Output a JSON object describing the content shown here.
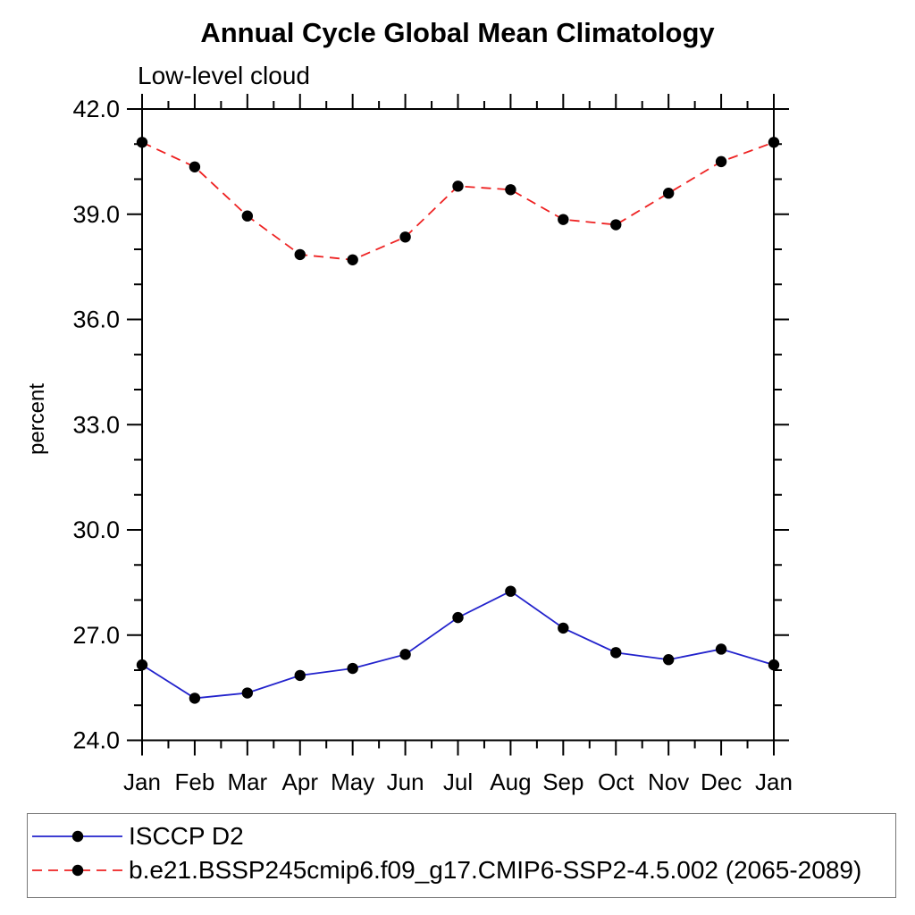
{
  "chart_data": {
    "type": "line",
    "title": "Annual Cycle Global Mean Climatology",
    "subtitle": "Low-level cloud",
    "ylabel": "percent",
    "xlabel": "",
    "categories": [
      "Jan",
      "Feb",
      "Mar",
      "Apr",
      "May",
      "Jun",
      "Jul",
      "Aug",
      "Sep",
      "Oct",
      "Nov",
      "Dec",
      "Jan"
    ],
    "ylim": [
      24.0,
      42.0
    ],
    "y_major_tick_step": 3.0,
    "y_minor_tick_step": 1.0,
    "y_major_tick_labels": [
      "24.0",
      "27.0",
      "30.0",
      "33.0",
      "36.0",
      "39.0",
      "42.0"
    ],
    "grid": false,
    "legend_position": "bottom-left-box",
    "axis_color": "#000000",
    "marker_color": "#000000",
    "series": [
      {
        "name": "ISCCP D2",
        "color": "#2222cc",
        "line_style": "solid",
        "marker": "filled-circle",
        "values": [
          26.15,
          25.2,
          25.35,
          25.85,
          26.05,
          26.45,
          27.5,
          28.25,
          27.2,
          26.5,
          26.3,
          26.6,
          26.15
        ]
      },
      {
        "name": "b.e21.BSSP245cmip6.f09_g17.CMIP6-SSP2-4.5.002 (2065-2089)",
        "color": "#ee2222",
        "line_style": "dashed",
        "marker": "filled-circle",
        "values": [
          41.05,
          40.35,
          38.95,
          37.85,
          37.7,
          38.35,
          39.8,
          39.7,
          38.85,
          38.7,
          39.6,
          40.5,
          41.05
        ]
      }
    ]
  }
}
